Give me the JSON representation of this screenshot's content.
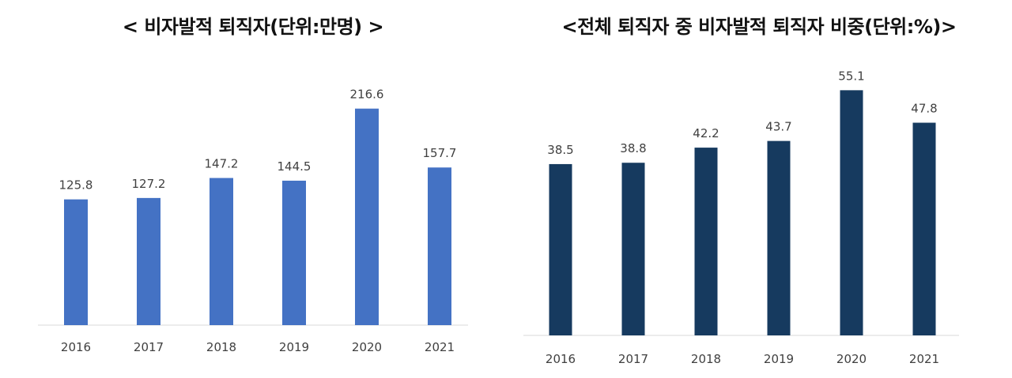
{
  "chart_data": [
    {
      "type": "bar",
      "title": "< 비자발적 퇴직자(단위:만명) >",
      "categories": [
        "2016",
        "2017",
        "2018",
        "2019",
        "2020",
        "2021"
      ],
      "values": [
        125.8,
        127.2,
        147.2,
        144.5,
        216.6,
        157.7
      ],
      "value_labels": [
        "125.8",
        "127.2",
        "147.2",
        "144.5",
        "216.6",
        "157.7"
      ],
      "xlabel": "",
      "ylabel": "",
      "ylim": [
        0,
        240
      ],
      "grid": false,
      "bar_color": "#4472C4"
    },
    {
      "type": "bar",
      "title": "<전체 퇴직자 중 비자발적 퇴직자 비중(단위:%)>",
      "categories": [
        "2016",
        "2017",
        "2018",
        "2019",
        "2020",
        "2021"
      ],
      "values": [
        38.5,
        38.8,
        42.2,
        43.7,
        55.1,
        47.8
      ],
      "value_labels": [
        "38.5",
        "38.8",
        "42.2",
        "43.7",
        "55.1",
        "47.8"
      ],
      "xlabel": "",
      "ylabel": "",
      "ylim": [
        0,
        58
      ],
      "grid": false,
      "bar_color": "#163A5F"
    }
  ]
}
